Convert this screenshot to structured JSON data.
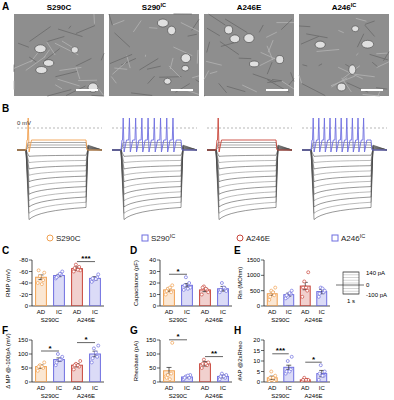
{
  "figure": {
    "panel_A": {
      "label": "A",
      "images": [
        {
          "base": "S290C"
        },
        {
          "base": "S290",
          "sup": "IC"
        },
        {
          "base": "A246E"
        },
        {
          "base": "A246",
          "sup": "IC"
        }
      ]
    },
    "panel_B": {
      "label": "B",
      "zero_label": "0 mV",
      "legend": [
        {
          "base": "S290C",
          "color": "#f0a050",
          "marker": "circle"
        },
        {
          "base": "S290",
          "sup": "IC",
          "color": "#6e6ee0",
          "marker": "square"
        },
        {
          "base": "A246E",
          "color": "#c8453a",
          "marker": "circle"
        },
        {
          "base": "A246",
          "sup": "IC",
          "color": "#6e6ee0",
          "marker": "square"
        }
      ]
    },
    "protocol": {
      "top": "140 pA",
      "zero": "0",
      "bottom": "-100 pA",
      "duration": "1 s"
    }
  },
  "chart_data": [
    {
      "type": "bar",
      "panel": "C",
      "y_label": "RMP (mV)",
      "categories": [
        "AD",
        "IC",
        "AD",
        "IC"
      ],
      "group_labels": [
        "S290C",
        "A246E"
      ],
      "values": [
        -50,
        -53,
        -65,
        -48
      ],
      "errors": [
        4,
        2,
        3,
        3
      ],
      "points": [
        [
          -40,
          -45,
          -52,
          -58,
          -62,
          -38
        ],
        [
          -48,
          -55,
          -52,
          -60,
          -50,
          -56
        ],
        [
          -60,
          -68,
          -72,
          -62,
          -66,
          -63
        ],
        [
          -42,
          -50,
          -46,
          -55,
          -48,
          -47
        ]
      ],
      "colors": [
        "#f0a050",
        "#6e6ee0",
        "#c8453a",
        "#6e6ee0"
      ],
      "ylim": [
        0,
        -80
      ],
      "yticks": [
        0,
        -20,
        -40,
        -60,
        -80
      ],
      "annotations": [
        {
          "text": "***",
          "group": "A246E"
        }
      ]
    },
    {
      "type": "bar",
      "panel": "D",
      "y_label": "Capacitance (pF)",
      "categories": [
        "AD",
        "IC",
        "AD",
        "IC"
      ],
      "group_labels": [
        "S290C",
        "A246E"
      ],
      "values": [
        14,
        18,
        14,
        15
      ],
      "errors": [
        1.5,
        1.5,
        1.5,
        2
      ],
      "points": [
        [
          10,
          12,
          15,
          18,
          13,
          16
        ],
        [
          14,
          20,
          25,
          16,
          18,
          15
        ],
        [
          10,
          14,
          17,
          12,
          16,
          15
        ],
        [
          12,
          15,
          20,
          13,
          14,
          16
        ]
      ],
      "colors": [
        "#f0a050",
        "#6e6ee0",
        "#c8453a",
        "#6e6ee0"
      ],
      "ylim": [
        0,
        40
      ],
      "yticks": [
        0,
        10,
        20,
        30,
        40
      ],
      "annotations": [
        {
          "text": "*",
          "group": "S290C"
        }
      ]
    },
    {
      "type": "bar",
      "panel": "E",
      "y_label": "Rin (MOhm)",
      "categories": [
        "AD",
        "IC",
        "AD",
        "IC"
      ],
      "group_labels": [
        "S290C",
        "A246E"
      ],
      "values": [
        400,
        370,
        650,
        470
      ],
      "errors": [
        60,
        50,
        120,
        70
      ],
      "points": [
        [
          200,
          350,
          500,
          600,
          300,
          450
        ],
        [
          250,
          400,
          300,
          500,
          350,
          420
        ],
        [
          300,
          500,
          800,
          1100,
          600,
          600
        ],
        [
          300,
          450,
          600,
          500,
          400,
          570
        ]
      ],
      "colors": [
        "#f0a050",
        "#6e6ee0",
        "#c8453a",
        "#6e6ee0"
      ],
      "ylim": [
        0,
        1500
      ],
      "yticks": [
        0,
        500,
        1000,
        1500
      ],
      "annotations": []
    },
    {
      "type": "bar",
      "panel": "F",
      "y_label": "Δ MP @-100pA (mV)",
      "categories": [
        "AD",
        "IC",
        "AD",
        "IC"
      ],
      "group_labels": [
        "S290C",
        "A246E"
      ],
      "values": [
        55,
        80,
        60,
        100
      ],
      "errors": [
        6,
        6,
        6,
        10
      ],
      "points": [
        [
          40,
          50,
          60,
          70,
          55,
          55
        ],
        [
          60,
          80,
          100,
          90,
          70,
          80
        ],
        [
          45,
          55,
          65,
          75,
          60,
          60
        ],
        [
          70,
          90,
          120,
          130,
          85,
          105
        ]
      ],
      "colors": [
        "#f0a050",
        "#6e6ee0",
        "#c8453a",
        "#6e6ee0"
      ],
      "ylim": [
        0,
        150
      ],
      "yticks": [
        0,
        50,
        100,
        150
      ],
      "annotations": [
        {
          "text": "*",
          "group": "S290C"
        },
        {
          "text": "*",
          "group": "A246E"
        }
      ]
    },
    {
      "type": "bar",
      "panel": "G",
      "y_label": "Rheobase (pA)",
      "categories": [
        "AD",
        "IC",
        "AD",
        "IC"
      ],
      "group_labels": [
        "S290C",
        "A246E"
      ],
      "values": [
        40,
        18,
        65,
        20
      ],
      "errors": [
        12,
        3,
        8,
        5
      ],
      "points": [
        [
          20,
          30,
          25,
          140,
          15,
          10
        ],
        [
          10,
          15,
          20,
          25,
          15,
          23
        ],
        [
          50,
          60,
          80,
          70,
          65,
          65
        ],
        [
          10,
          15,
          30,
          25,
          20,
          20
        ]
      ],
      "colors": [
        "#f0a050",
        "#6e6ee0",
        "#c8453a",
        "#6e6ee0"
      ],
      "ylim": [
        0,
        150
      ],
      "yticks": [
        0,
        50,
        100,
        150
      ],
      "annotations": [
        {
          "text": "*",
          "group": "S290C"
        },
        {
          "text": "**",
          "group": "A246E"
        }
      ]
    },
    {
      "type": "bar",
      "panel": "H",
      "y_label": "#AP @2xRheo",
      "categories": [
        "AD",
        "IC",
        "AD",
        "IC"
      ],
      "group_labels": [
        "S290C",
        "A246E"
      ],
      "values": [
        2,
        7,
        1,
        4
      ],
      "errors": [
        0.8,
        1,
        0.4,
        1.5
      ],
      "points": [
        [
          0,
          0,
          5,
          3,
          2,
          2
        ],
        [
          4,
          6,
          10,
          12,
          5,
          5
        ],
        [
          0,
          1,
          2,
          1,
          1,
          1
        ],
        [
          1,
          3,
          8,
          5,
          4,
          3
        ]
      ],
      "colors": [
        "#f0a050",
        "#6e6ee0",
        "#c8453a",
        "#6e6ee0"
      ],
      "ylim": [
        0,
        20
      ],
      "yticks": [
        0,
        5,
        10,
        15,
        20
      ],
      "annotations": [
        {
          "text": "***",
          "group": "S290C"
        },
        {
          "text": "*",
          "group": "A246E"
        }
      ]
    }
  ]
}
